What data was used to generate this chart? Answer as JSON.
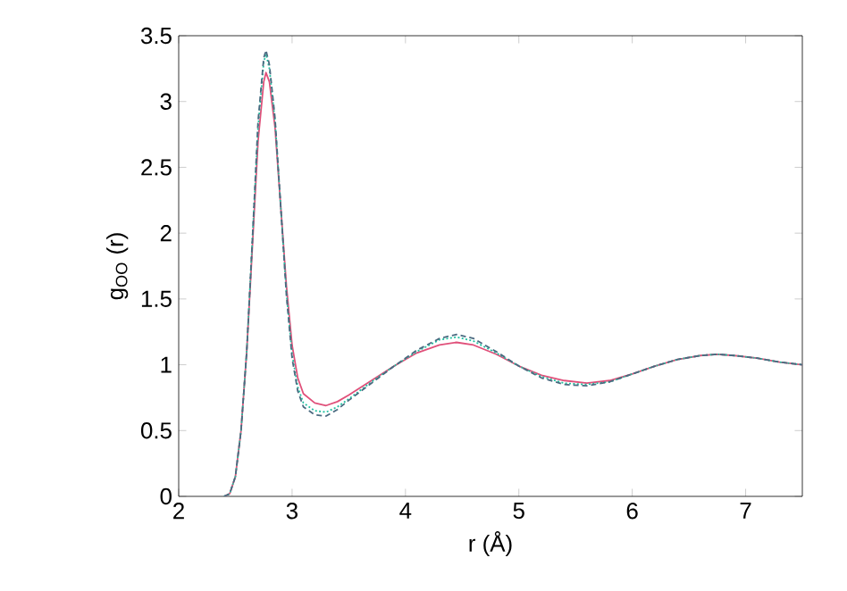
{
  "chart_data": {
    "type": "line",
    "xlabel": "r (Å)",
    "ylabel": "g$_{OO}$ (r)",
    "xlim": [
      2,
      7.5
    ],
    "ylim": [
      0,
      3.5
    ],
    "xticks": [
      2,
      3,
      4,
      5,
      6,
      7
    ],
    "yticks": [
      0,
      0.5,
      1,
      1.5,
      2,
      2.5,
      3,
      3.5
    ],
    "marker": "none",
    "x": [
      2.4,
      2.45,
      2.5,
      2.55,
      2.6,
      2.65,
      2.7,
      2.75,
      2.77,
      2.8,
      2.85,
      2.9,
      2.95,
      3.0,
      3.05,
      3.1,
      3.2,
      3.3,
      3.4,
      3.5,
      3.7,
      3.9,
      4.1,
      4.3,
      4.45,
      4.6,
      4.8,
      5.0,
      5.2,
      5.4,
      5.6,
      5.8,
      6.0,
      6.2,
      6.4,
      6.6,
      6.75,
      6.9,
      7.1,
      7.3,
      7.5
    ],
    "series": [
      {
        "color": "#e0507a",
        "line_style": "solid",
        "values": [
          0,
          0.02,
          0.15,
          0.5,
          1.1,
          1.9,
          2.7,
          3.15,
          3.22,
          3.15,
          2.8,
          2.2,
          1.6,
          1.15,
          0.9,
          0.78,
          0.71,
          0.69,
          0.72,
          0.77,
          0.88,
          0.99,
          1.09,
          1.15,
          1.17,
          1.15,
          1.08,
          0.99,
          0.92,
          0.88,
          0.86,
          0.88,
          0.93,
          0.99,
          1.04,
          1.07,
          1.08,
          1.07,
          1.05,
          1.02,
          1.0
        ]
      },
      {
        "color": "#20c0a0",
        "line_style": "dotted",
        "values": [
          0,
          0.02,
          0.15,
          0.5,
          1.1,
          1.95,
          2.8,
          3.3,
          3.36,
          3.25,
          2.85,
          2.2,
          1.55,
          1.08,
          0.83,
          0.71,
          0.65,
          0.64,
          0.68,
          0.74,
          0.87,
          0.99,
          1.1,
          1.19,
          1.21,
          1.18,
          1.09,
          0.99,
          0.91,
          0.86,
          0.85,
          0.87,
          0.93,
          0.99,
          1.04,
          1.07,
          1.08,
          1.07,
          1.05,
          1.02,
          1.0
        ]
      },
      {
        "color": "#4a6a80",
        "line_style": "dashed",
        "values": [
          0,
          0.02,
          0.15,
          0.5,
          1.1,
          1.95,
          2.85,
          3.33,
          3.39,
          3.28,
          2.87,
          2.2,
          1.53,
          1.05,
          0.8,
          0.68,
          0.62,
          0.61,
          0.66,
          0.73,
          0.86,
          0.99,
          1.11,
          1.2,
          1.23,
          1.2,
          1.1,
          0.99,
          0.9,
          0.85,
          0.84,
          0.87,
          0.93,
          0.99,
          1.04,
          1.07,
          1.08,
          1.07,
          1.05,
          1.02,
          1.0
        ]
      }
    ]
  }
}
